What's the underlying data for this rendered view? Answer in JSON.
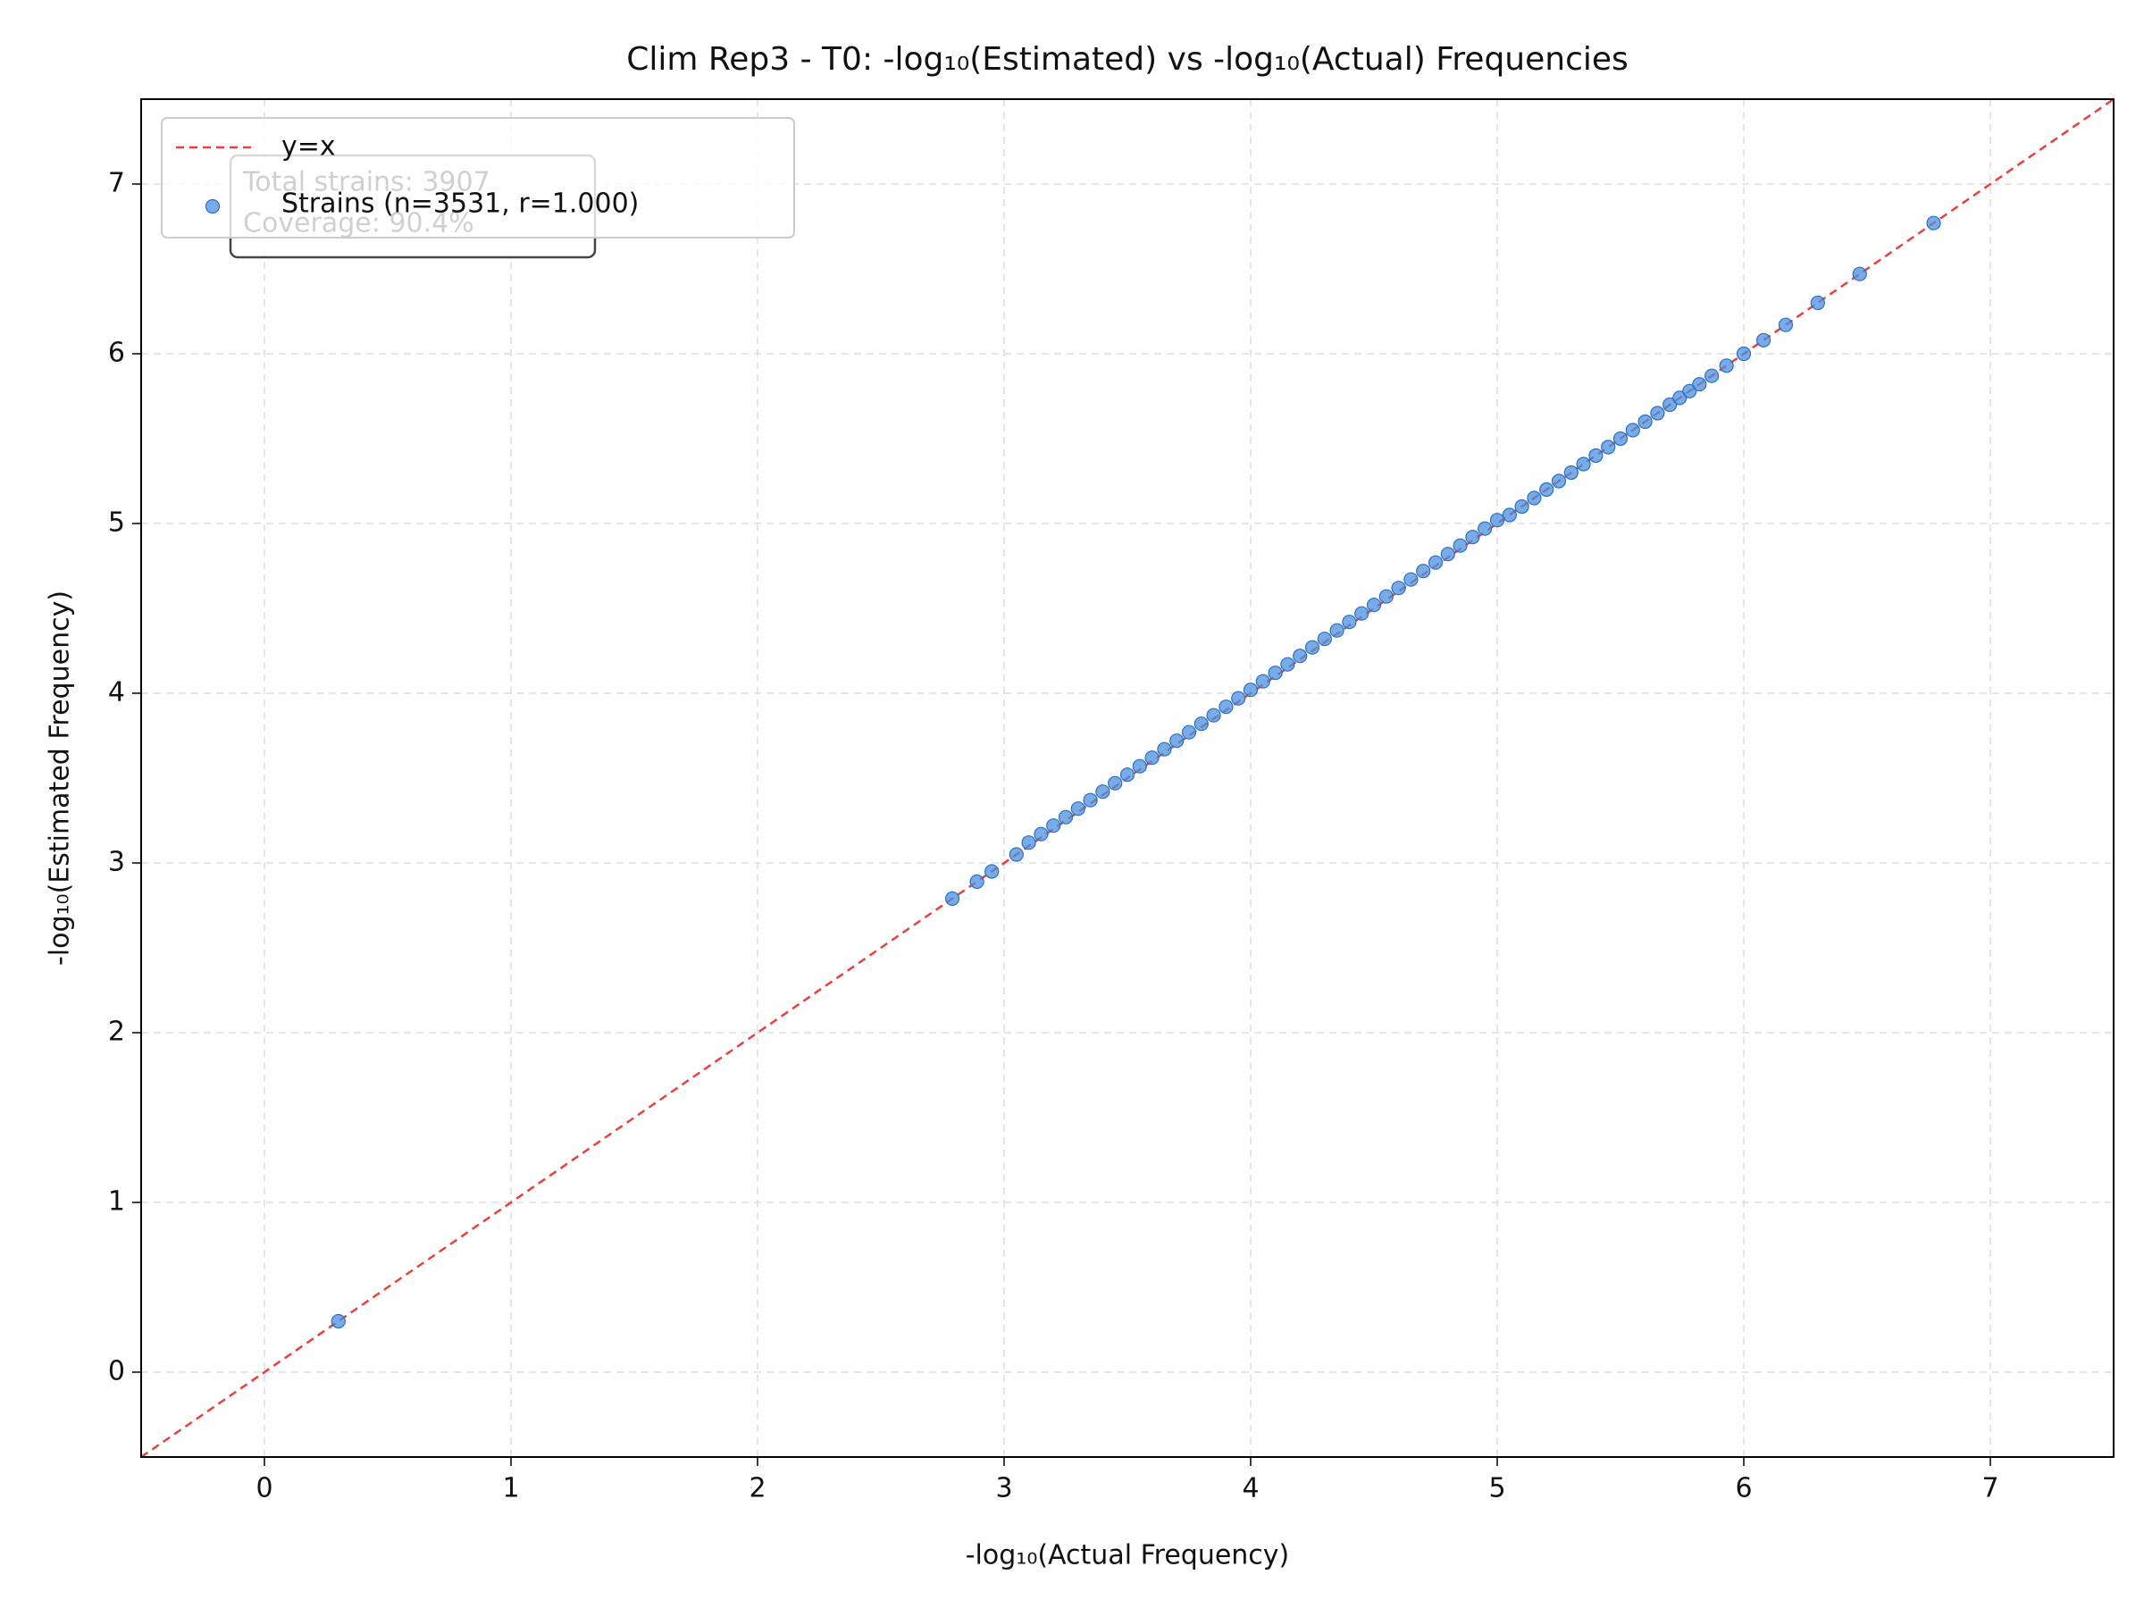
{
  "chart_data": {
    "type": "scatter",
    "title": "Clim Rep3 - T0: -log₁₀(Estimated) vs -log₁₀(Actual) Frequencies",
    "x_label": "-log₁₀(Actual Frequency)",
    "y_label": "-log₁₀(Estimated Frequency)",
    "xlim": [
      -0.5,
      7.5
    ],
    "ylim": [
      -0.5,
      7.5
    ],
    "xticks": [
      0,
      1,
      2,
      3,
      4,
      5,
      6,
      7
    ],
    "yticks": [
      0,
      1,
      2,
      3,
      4,
      5,
      6,
      7
    ],
    "grid": true,
    "legend": "upper left",
    "reference_line": {
      "name": "y=x",
      "color": "#e8413c"
    },
    "annotation": [
      "Total strains: 3907",
      "Coverage: 90.4%"
    ],
    "series": [
      {
        "name": "Strains (n=3531, r=1.000)",
        "color": "#4a90e2",
        "x": [
          0.3,
          2.79,
          2.89,
          2.95,
          3.05,
          3.1,
          3.15,
          3.2,
          3.25,
          3.3,
          3.35,
          3.4,
          3.45,
          3.5,
          3.55,
          3.6,
          3.65,
          3.7,
          3.75,
          3.8,
          3.85,
          3.9,
          3.95,
          4.0,
          4.05,
          4.1,
          4.15,
          4.2,
          4.25,
          4.3,
          4.35,
          4.4,
          4.45,
          4.5,
          4.55,
          4.6,
          4.65,
          4.7,
          4.75,
          4.8,
          4.85,
          4.9,
          4.95,
          5.0,
          5.05,
          5.1,
          5.15,
          5.2,
          5.25,
          5.3,
          5.35,
          5.4,
          5.45,
          5.5,
          5.55,
          5.6,
          5.65,
          5.7,
          5.74,
          5.78,
          5.82,
          5.87,
          5.93,
          6.0,
          6.08,
          6.17,
          6.3,
          6.47,
          6.77
        ],
        "values": [
          0.3,
          2.79,
          2.89,
          2.95,
          3.05,
          3.12,
          3.17,
          3.22,
          3.27,
          3.32,
          3.37,
          3.42,
          3.47,
          3.52,
          3.57,
          3.62,
          3.67,
          3.72,
          3.77,
          3.82,
          3.87,
          3.92,
          3.97,
          4.02,
          4.07,
          4.12,
          4.17,
          4.22,
          4.27,
          4.32,
          4.37,
          4.42,
          4.47,
          4.52,
          4.57,
          4.62,
          4.67,
          4.72,
          4.77,
          4.82,
          4.87,
          4.92,
          4.97,
          5.02,
          5.05,
          5.1,
          5.15,
          5.2,
          5.25,
          5.3,
          5.35,
          5.4,
          5.45,
          5.5,
          5.55,
          5.6,
          5.65,
          5.7,
          5.74,
          5.78,
          5.82,
          5.87,
          5.93,
          6.0,
          6.08,
          6.17,
          6.3,
          6.47,
          6.77
        ]
      }
    ]
  }
}
